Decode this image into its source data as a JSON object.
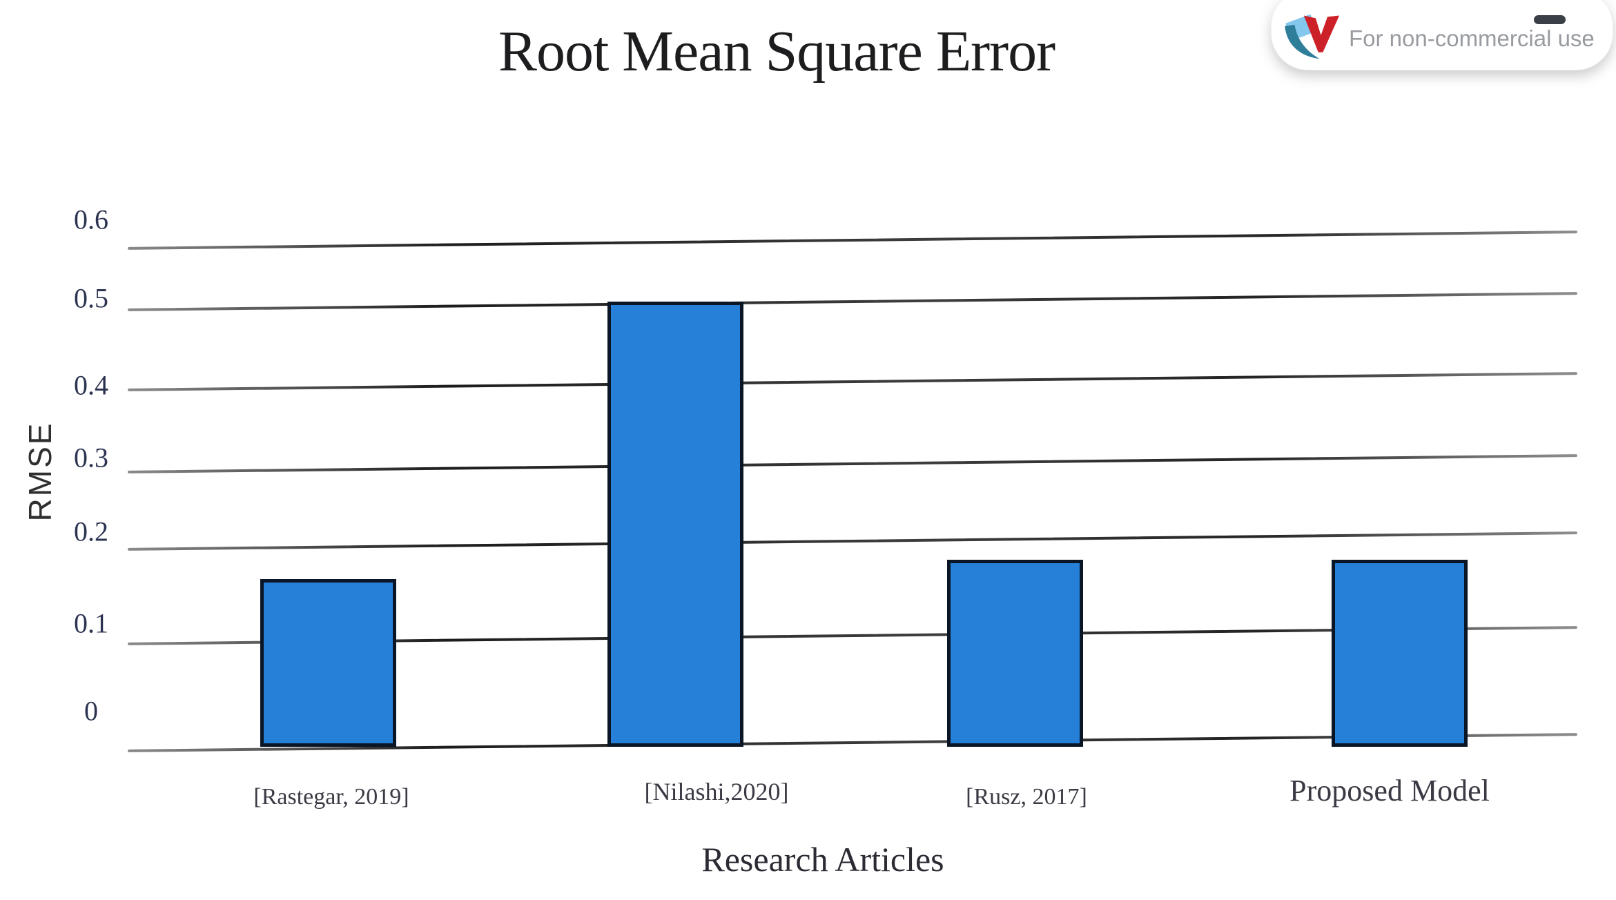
{
  "page": {
    "background": "#ffffff"
  },
  "watermark": {
    "text": "For non-commercial use",
    "logo": "pdf-editor-logo",
    "logo_colors": {
      "light_blue": "#85c8ee",
      "teal": "#2e7d99",
      "red": "#cd2129"
    }
  },
  "chart_data": {
    "type": "bar",
    "title": "Root Mean Square Error",
    "xlabel": "Research Articles",
    "ylabel": "RMSE",
    "categories": [
      "[Rastegar, 2019]",
      "[Nilashi,2020]",
      "[Rusz, 2017]",
      "Proposed Model"
    ],
    "values": [
      0.16,
      0.5,
      0.18,
      0.18
    ],
    "yticks": [
      0,
      0.1,
      0.2,
      0.3,
      0.4,
      0.5,
      0.6
    ],
    "ylim": [
      0,
      0.6
    ],
    "grid": "horizontal-only",
    "legend": "none",
    "bar_color": "#2680d8",
    "bar_border_color": "#0a1626",
    "gridline_color": "#3a3a3a",
    "tick_label_color": "#2b3350",
    "title_color": "#1d1d1f"
  }
}
